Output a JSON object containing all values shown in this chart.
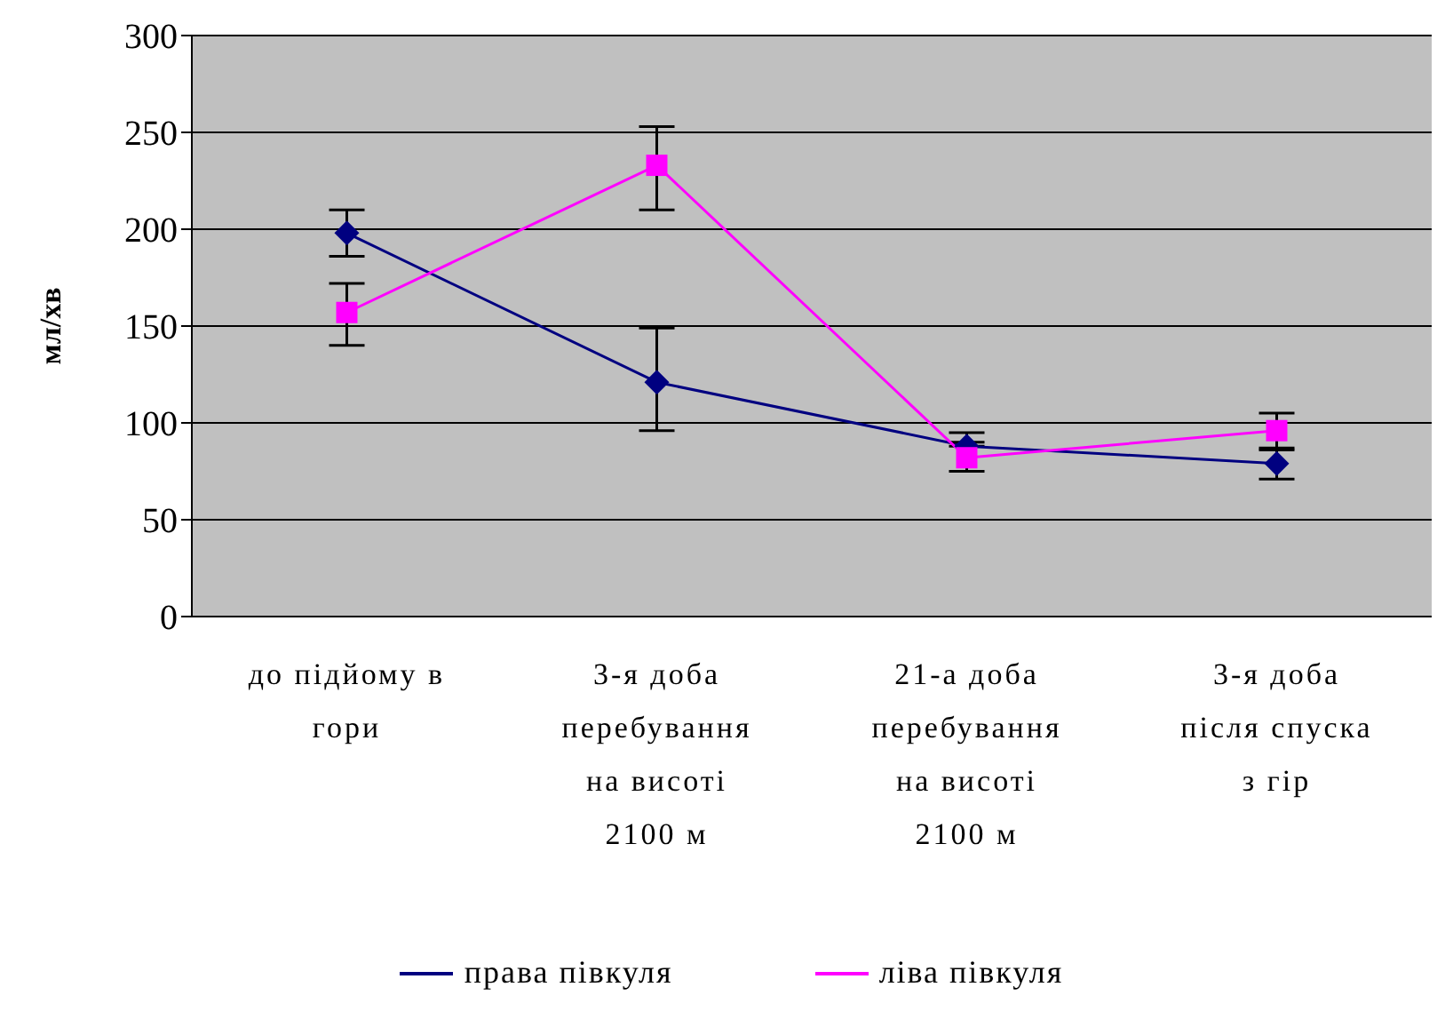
{
  "chart_data": {
    "type": "line",
    "ylabel": "мл/хв",
    "categories": [
      "до підйому в гори",
      "3-я доба перебування на висоті 2100 м",
      "21-а доба перебування на висоті 2100 м",
      "3-я доба після спуска з гір"
    ],
    "series": [
      {
        "name": "права півкуля",
        "color": "#000080",
        "marker": "diamond",
        "values": [
          198,
          121,
          88,
          79
        ],
        "errors": [
          [
            186,
            210
          ],
          [
            96,
            149
          ],
          [
            88,
            95
          ],
          [
            71,
            86
          ]
        ]
      },
      {
        "name": "ліва півкуля",
        "color": "#ff00ff",
        "marker": "square",
        "values": [
          157,
          233,
          82,
          96
        ],
        "errors": [
          [
            140,
            172
          ],
          [
            210,
            253
          ],
          [
            75,
            90
          ],
          [
            87,
            105
          ]
        ]
      }
    ],
    "ylim": [
      0,
      300
    ],
    "yticks": [
      0,
      50,
      100,
      150,
      200,
      250,
      300
    ],
    "grid": "y",
    "legend": "bottom"
  }
}
